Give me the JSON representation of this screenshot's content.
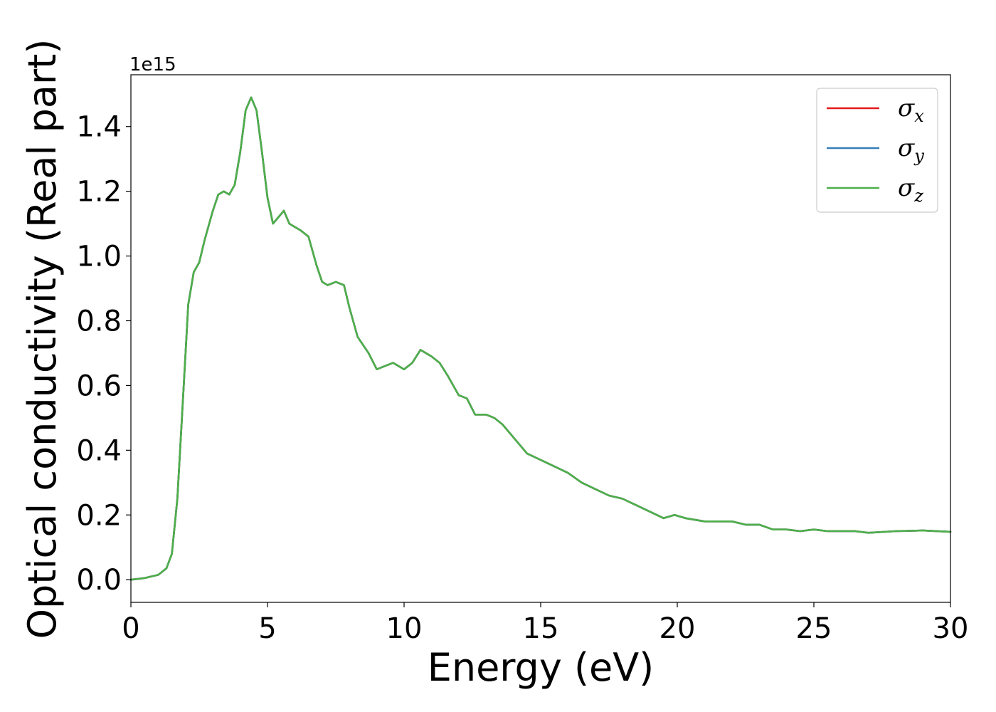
{
  "chart_data": {
    "type": "line",
    "xlabel": "Energy (eV)",
    "ylabel": "Optical conductivity (Real part)",
    "y_offset_label": "1e15",
    "y_multiplier": 1000000000000000.0,
    "xlim": [
      0,
      30
    ],
    "ylim": [
      -0.07,
      1.56
    ],
    "x_ticks": [
      0,
      5,
      10,
      15,
      20,
      25,
      30
    ],
    "x_tick_labels": [
      "0",
      "5",
      "10",
      "15",
      "20",
      "25",
      "30"
    ],
    "y_ticks": [
      0.0,
      0.2,
      0.4,
      0.6,
      0.8,
      1.0,
      1.2,
      1.4
    ],
    "y_tick_labels": [
      "0.0",
      "0.2",
      "0.4",
      "0.6",
      "0.8",
      "1.0",
      "1.2",
      "1.4"
    ],
    "grid": false,
    "legend_position": "top-right",
    "series": [
      {
        "name": "σx",
        "legend_base": "σ",
        "legend_sub": "x",
        "color": "#e41a1c",
        "x": [
          0,
          0.5,
          1.0,
          1.3,
          1.5,
          1.7,
          1.9,
          2.1,
          2.3,
          2.5,
          2.7,
          3.0,
          3.2,
          3.4,
          3.6,
          3.8,
          4.0,
          4.2,
          4.4,
          4.6,
          4.8,
          5.0,
          5.2,
          5.4,
          5.6,
          5.8,
          6.0,
          6.2,
          6.5,
          6.8,
          7.0,
          7.2,
          7.5,
          7.8,
          8.0,
          8.3,
          8.7,
          9.0,
          9.3,
          9.6,
          10.0,
          10.3,
          10.6,
          11.0,
          11.3,
          11.6,
          12.0,
          12.3,
          12.6,
          13.0,
          13.3,
          13.6,
          14.0,
          14.5,
          15.0,
          15.5,
          16.0,
          16.5,
          17.0,
          17.5,
          18.0,
          18.5,
          19.0,
          19.5,
          19.9,
          20.3,
          21.0,
          22.0,
          22.5,
          23.0,
          23.5,
          24.0,
          24.5,
          25.0,
          25.5,
          26.0,
          26.5,
          27.0,
          28.0,
          29.0,
          30.0
        ],
        "values": [
          0.0,
          0.005,
          0.015,
          0.035,
          0.08,
          0.25,
          0.55,
          0.85,
          0.95,
          0.98,
          1.05,
          1.14,
          1.19,
          1.2,
          1.19,
          1.22,
          1.32,
          1.45,
          1.49,
          1.45,
          1.32,
          1.18,
          1.1,
          1.12,
          1.14,
          1.1,
          1.09,
          1.08,
          1.06,
          0.97,
          0.92,
          0.91,
          0.92,
          0.91,
          0.84,
          0.75,
          0.7,
          0.65,
          0.66,
          0.67,
          0.65,
          0.67,
          0.71,
          0.69,
          0.67,
          0.63,
          0.57,
          0.56,
          0.51,
          0.51,
          0.5,
          0.48,
          0.44,
          0.39,
          0.37,
          0.35,
          0.33,
          0.3,
          0.28,
          0.26,
          0.25,
          0.23,
          0.21,
          0.19,
          0.2,
          0.19,
          0.18,
          0.18,
          0.17,
          0.17,
          0.155,
          0.155,
          0.15,
          0.155,
          0.15,
          0.15,
          0.15,
          0.145,
          0.15,
          0.152,
          0.148
        ]
      },
      {
        "name": "σy",
        "legend_base": "σ",
        "legend_sub": "y",
        "color": "#377eb8",
        "x": [
          0,
          0.5,
          1.0,
          1.3,
          1.5,
          1.7,
          1.9,
          2.1,
          2.3,
          2.5,
          2.7,
          3.0,
          3.2,
          3.4,
          3.6,
          3.8,
          4.0,
          4.2,
          4.4,
          4.6,
          4.8,
          5.0,
          5.2,
          5.4,
          5.6,
          5.8,
          6.0,
          6.2,
          6.5,
          6.8,
          7.0,
          7.2,
          7.5,
          7.8,
          8.0,
          8.3,
          8.7,
          9.0,
          9.3,
          9.6,
          10.0,
          10.3,
          10.6,
          11.0,
          11.3,
          11.6,
          12.0,
          12.3,
          12.6,
          13.0,
          13.3,
          13.6,
          14.0,
          14.5,
          15.0,
          15.5,
          16.0,
          16.5,
          17.0,
          17.5,
          18.0,
          18.5,
          19.0,
          19.5,
          19.9,
          20.3,
          21.0,
          22.0,
          22.5,
          23.0,
          23.5,
          24.0,
          24.5,
          25.0,
          25.5,
          26.0,
          26.5,
          27.0,
          28.0,
          29.0,
          30.0
        ],
        "values": [
          0.0,
          0.005,
          0.015,
          0.035,
          0.08,
          0.25,
          0.55,
          0.85,
          0.95,
          0.98,
          1.05,
          1.14,
          1.19,
          1.2,
          1.19,
          1.22,
          1.32,
          1.45,
          1.49,
          1.45,
          1.32,
          1.18,
          1.1,
          1.12,
          1.14,
          1.1,
          1.09,
          1.08,
          1.06,
          0.97,
          0.92,
          0.91,
          0.92,
          0.91,
          0.84,
          0.75,
          0.7,
          0.65,
          0.66,
          0.67,
          0.65,
          0.67,
          0.71,
          0.69,
          0.67,
          0.63,
          0.57,
          0.56,
          0.51,
          0.51,
          0.5,
          0.48,
          0.44,
          0.39,
          0.37,
          0.35,
          0.33,
          0.3,
          0.28,
          0.26,
          0.25,
          0.23,
          0.21,
          0.19,
          0.2,
          0.19,
          0.18,
          0.18,
          0.17,
          0.17,
          0.155,
          0.155,
          0.15,
          0.155,
          0.15,
          0.15,
          0.15,
          0.145,
          0.15,
          0.152,
          0.148
        ]
      },
      {
        "name": "σz",
        "legend_base": "σ",
        "legend_sub": "z",
        "color": "#4daf4a",
        "x": [
          0,
          0.5,
          1.0,
          1.3,
          1.5,
          1.7,
          1.9,
          2.1,
          2.3,
          2.5,
          2.7,
          3.0,
          3.2,
          3.4,
          3.6,
          3.8,
          4.0,
          4.2,
          4.4,
          4.6,
          4.8,
          5.0,
          5.2,
          5.4,
          5.6,
          5.8,
          6.0,
          6.2,
          6.5,
          6.8,
          7.0,
          7.2,
          7.5,
          7.8,
          8.0,
          8.3,
          8.7,
          9.0,
          9.3,
          9.6,
          10.0,
          10.3,
          10.6,
          11.0,
          11.3,
          11.6,
          12.0,
          12.3,
          12.6,
          13.0,
          13.3,
          13.6,
          14.0,
          14.5,
          15.0,
          15.5,
          16.0,
          16.5,
          17.0,
          17.5,
          18.0,
          18.5,
          19.0,
          19.5,
          19.9,
          20.3,
          21.0,
          22.0,
          22.5,
          23.0,
          23.5,
          24.0,
          24.5,
          25.0,
          25.5,
          26.0,
          26.5,
          27.0,
          28.0,
          29.0,
          30.0
        ],
        "values": [
          0.0,
          0.005,
          0.015,
          0.035,
          0.08,
          0.25,
          0.55,
          0.85,
          0.95,
          0.98,
          1.05,
          1.14,
          1.19,
          1.2,
          1.19,
          1.22,
          1.32,
          1.45,
          1.49,
          1.45,
          1.32,
          1.18,
          1.1,
          1.12,
          1.14,
          1.1,
          1.09,
          1.08,
          1.06,
          0.97,
          0.92,
          0.91,
          0.92,
          0.91,
          0.84,
          0.75,
          0.7,
          0.65,
          0.66,
          0.67,
          0.65,
          0.67,
          0.71,
          0.69,
          0.67,
          0.63,
          0.57,
          0.56,
          0.51,
          0.51,
          0.5,
          0.48,
          0.44,
          0.39,
          0.37,
          0.35,
          0.33,
          0.3,
          0.28,
          0.26,
          0.25,
          0.23,
          0.21,
          0.19,
          0.2,
          0.19,
          0.18,
          0.18,
          0.17,
          0.17,
          0.155,
          0.155,
          0.15,
          0.155,
          0.15,
          0.15,
          0.15,
          0.145,
          0.15,
          0.152,
          0.148
        ]
      }
    ]
  }
}
